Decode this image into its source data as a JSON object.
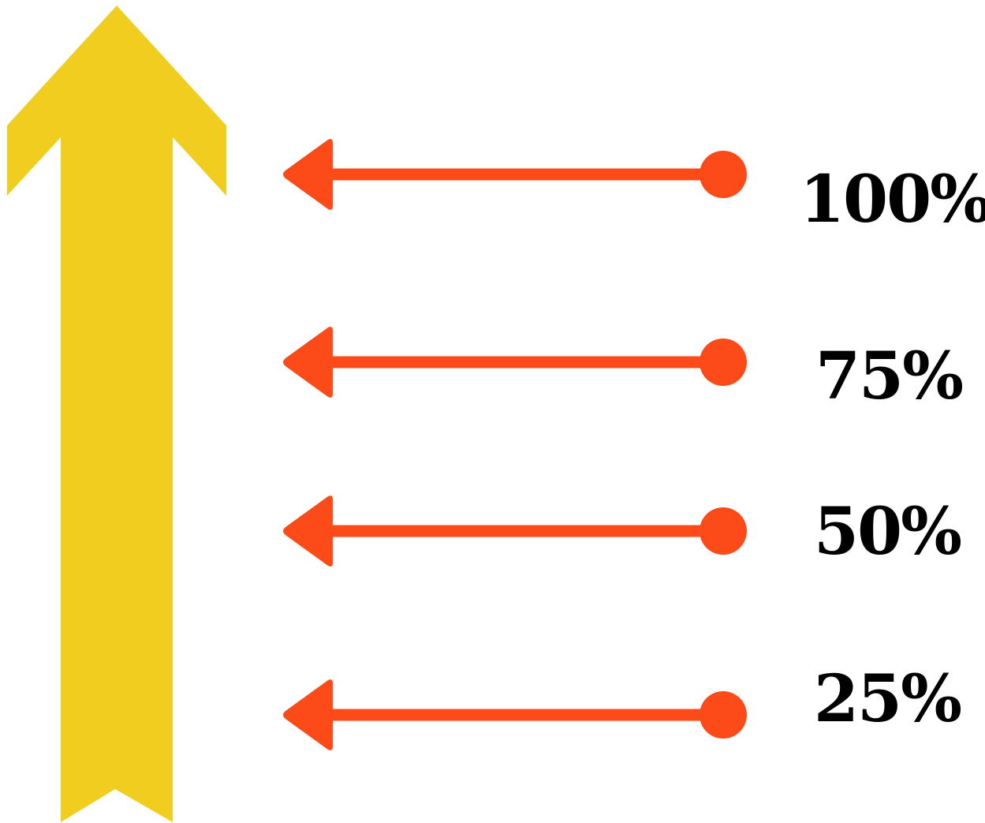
{
  "colors": {
    "main_arrow": "#F0CD1E",
    "level_arrows": "#FC4A18",
    "label_text": "#000000",
    "background": "#FFFFFF"
  },
  "main_arrow": {
    "icon": "up-chevron-arrow",
    "direction": "up"
  },
  "levels": [
    {
      "label": "100%",
      "value": 100,
      "icon": "left-arrow-with-dot"
    },
    {
      "label": "75%",
      "value": 75,
      "icon": "left-arrow-with-dot"
    },
    {
      "label": "50%",
      "value": 50,
      "icon": "left-arrow-with-dot"
    },
    {
      "label": "25%",
      "value": 25,
      "icon": "left-arrow-with-dot"
    }
  ]
}
